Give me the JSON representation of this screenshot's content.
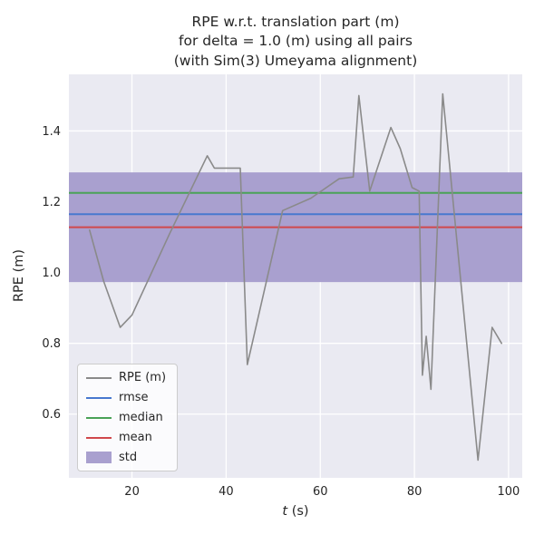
{
  "figure": {
    "title_lines": [
      "RPE w.r.t. translation part (m)",
      "for delta = 1.0 (m) using all pairs",
      "(with Sim(3) Umeyama alignment)"
    ],
    "xlabel_var": "t",
    "xlabel_unit": " (s)",
    "ylabel": "RPE (m)"
  },
  "chart_data": {
    "type": "line",
    "title": "RPE w.r.t. translation part (m) for delta = 1.0 (m) using all pairs (with Sim(3) Umeyama alignment)",
    "xlabel": "t (s)",
    "ylabel": "RPE (m)",
    "xlim": [
      6.6,
      102.9
    ],
    "ylim": [
      0.42,
      1.56
    ],
    "xticks": [
      20,
      40,
      60,
      80,
      100
    ],
    "xtick_labels": [
      "20",
      "40",
      "60",
      "80",
      "100"
    ],
    "yticks": [
      0.6,
      0.8,
      1.0,
      1.2,
      1.4
    ],
    "ytick_labels": [
      "0.6",
      "0.8",
      "1.0",
      "1.2",
      "1.4"
    ],
    "grid": true,
    "legend_position": "lower left",
    "series": [
      {
        "name": "RPE (m)",
        "type": "line",
        "color": "#8a8a8a",
        "x": [
          11,
          14,
          17.5,
          20,
          28,
          36,
          37.5,
          43,
          44.5,
          52,
          58,
          64,
          67,
          68.2,
          70.5,
          75,
          77,
          79.5,
          81,
          81.7,
          82.5,
          83.5,
          86,
          93.5,
          96.5,
          98.5
        ],
        "y": [
          1.12,
          0.975,
          0.845,
          0.88,
          1.11,
          1.33,
          1.295,
          1.295,
          0.74,
          1.175,
          1.21,
          1.265,
          1.27,
          1.5,
          1.23,
          1.41,
          1.35,
          1.24,
          1.23,
          0.71,
          0.82,
          0.67,
          1.505,
          0.47,
          0.845,
          0.8
        ]
      }
    ],
    "stat_lines": [
      {
        "name": "rmse",
        "value": 1.165,
        "color": "#4878cf"
      },
      {
        "name": "median",
        "value": 1.225,
        "color": "#4aa257"
      },
      {
        "name": "mean",
        "value": 1.128,
        "color": "#d0484c"
      }
    ],
    "std_band": {
      "name": "std",
      "mean": 1.128,
      "std": 0.155,
      "lower": 0.973,
      "upper": 1.283,
      "color": "#a9a0cf"
    },
    "colors": {
      "figure_background": "#ffffff",
      "axes_background": "#eaeaf2",
      "grid": "#ffffff",
      "tick_label": "#262626"
    }
  },
  "legend": {
    "entries": [
      {
        "label": "RPE (m)",
        "swatch": "line",
        "color": "#8a8a8a"
      },
      {
        "label": "rmse",
        "swatch": "line",
        "color": "#4878cf"
      },
      {
        "label": "median",
        "swatch": "line",
        "color": "#4aa257"
      },
      {
        "label": "mean",
        "swatch": "line",
        "color": "#d0484c"
      },
      {
        "label": "std",
        "swatch": "patch",
        "color": "#a9a0cf"
      }
    ]
  }
}
